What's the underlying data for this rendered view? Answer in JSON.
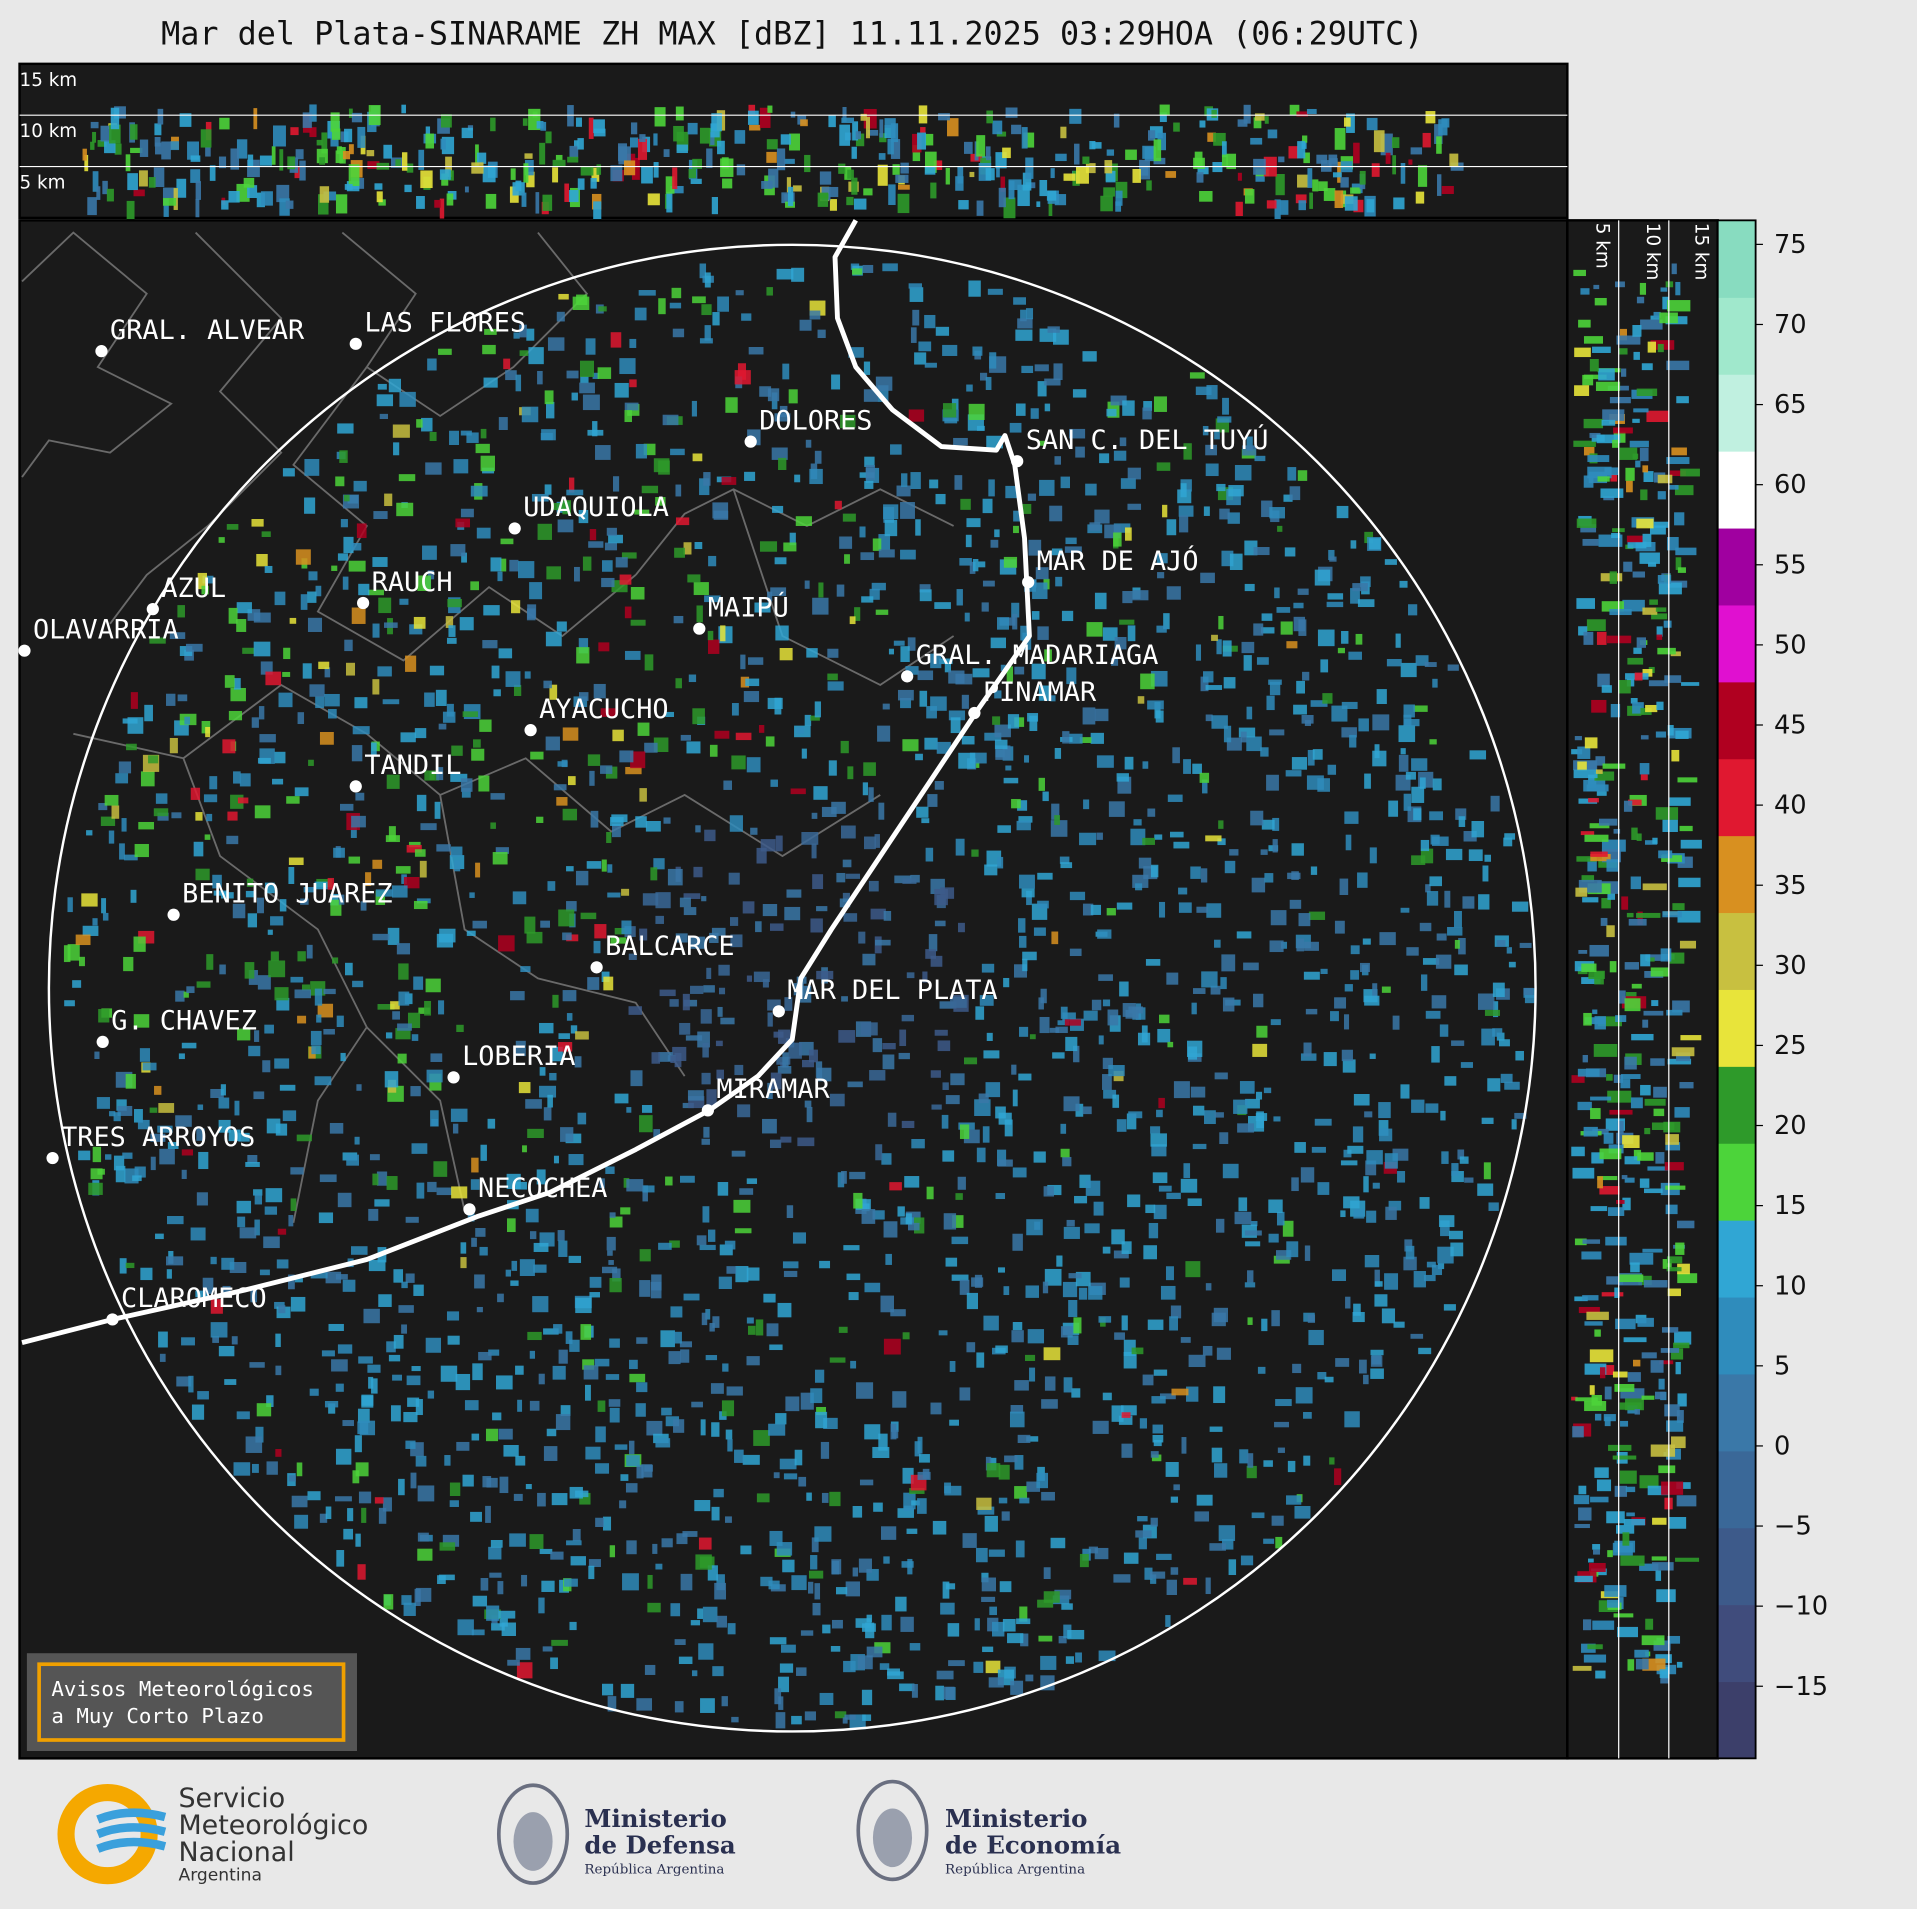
{
  "title": "Mar del Plata-SINARAME ZH MAX [dBZ] 11.11.2025 03:29HOA (06:29UTC)",
  "top_profile_labels": [
    "15 km",
    "10 km",
    "5 km"
  ],
  "side_profile_labels": [
    "5 km",
    "10 km",
    "15 km"
  ],
  "cities": [
    "GRAL. ALVEAR",
    "LAS FLORES",
    "DOLORES",
    "SAN C. DEL TUYÚ",
    "UDAQUIOLA",
    "MAR DE AJÓ",
    "AZUL",
    "RAUCH",
    "OLAVARRIA",
    "MAIPÚ",
    "GRAL. MADARIAGA",
    "PINAMAR",
    "AYACUCHO",
    "TANDIL",
    "BENITO JUAREZ",
    "BALCARCE",
    "MAR DEL PLATA",
    "G. CHAVEZ",
    "LOBERIA",
    "MIRAMAR",
    "TRES ARROYOS",
    "NECOCHEA",
    "CLAROMECO"
  ],
  "notice": [
    "Avisos Meteorológicos",
    "a Muy Corto Plazo"
  ],
  "colorbar": {
    "lim": [
      -19.5,
      76.5
    ],
    "ticks": [
      75,
      70,
      65,
      60,
      55,
      50,
      45,
      40,
      35,
      30,
      25,
      20,
      15,
      10,
      5,
      0,
      {
        "value": -5,
        "label": "−5"
      },
      {
        "value": -10,
        "label": "−10"
      },
      {
        "value": -15,
        "label": "−15"
      }
    ],
    "colors": [
      "#3c3f6a",
      "#404c7c",
      "#3d5a8a",
      "#3a6898",
      "#3a78a8",
      "#2f8cbc",
      "#30a6d4",
      "#4cd43a",
      "#2e9a2a",
      "#e8e43a",
      "#c8c040",
      "#d89020",
      "#e01830",
      "#b00020",
      "#e010d0",
      "#a000a0",
      "#ffffff",
      "#c0f0e0",
      "#a0e8cc",
      "#88dcc0"
    ]
  },
  "logos": {
    "smn": [
      "Servicio",
      "Meteorológico",
      "Nacional",
      "Argentina"
    ],
    "defensa": [
      "Ministerio",
      "de Defensa",
      "República Argentina"
    ],
    "economia": [
      "Ministerio",
      "de Economía",
      "República Argentina"
    ]
  }
}
